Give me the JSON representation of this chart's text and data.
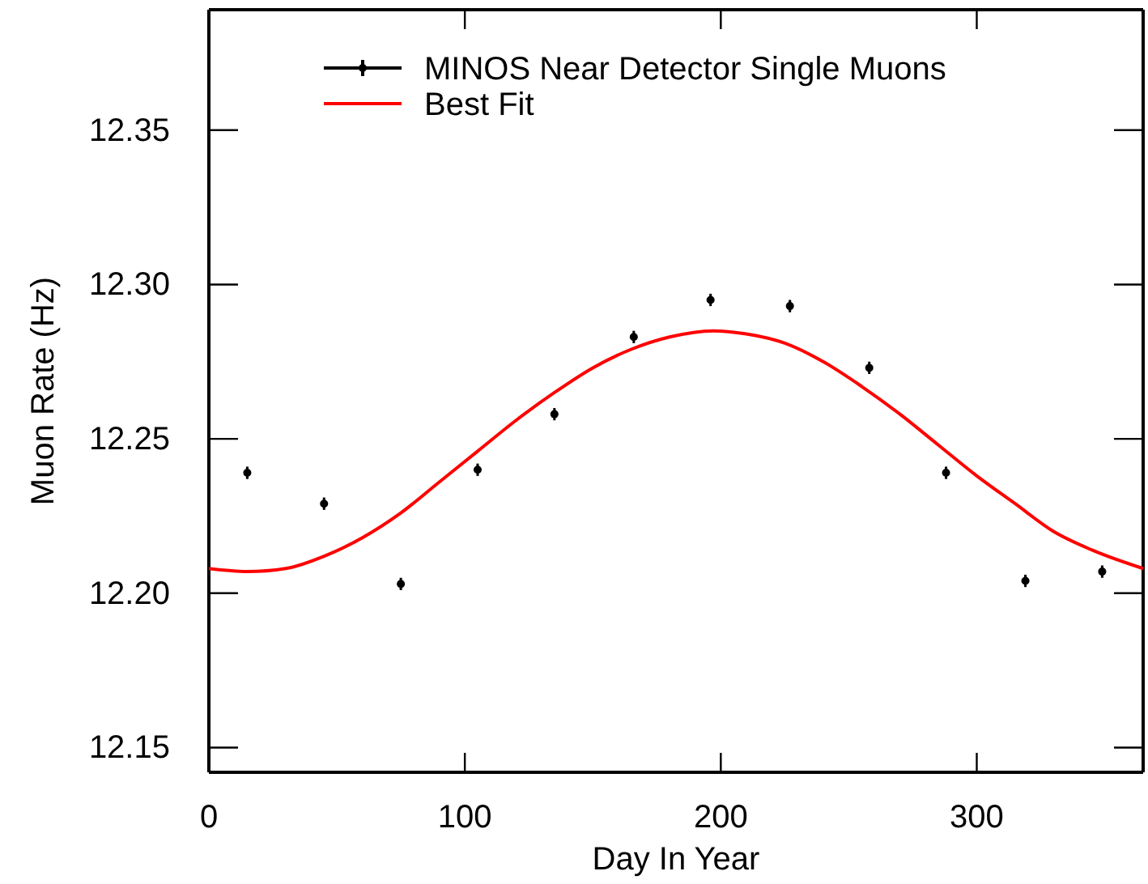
{
  "chart_data": {
    "type": "scatter",
    "xlabel": "Day In Year",
    "ylabel": "Muon Rate (Hz)",
    "xlim": [
      0,
      365
    ],
    "ylim": [
      12.142,
      12.389
    ],
    "xticks": [
      0,
      100,
      200,
      300
    ],
    "yticks": [
      12.15,
      {
        "value": 12.2,
        "label": "12.20"
      },
      12.25,
      {
        "value": 12.3,
        "label": "12.30"
      },
      12.35
    ],
    "grid": false,
    "legend": "top left",
    "series": [
      {
        "name": "MINOS Near Detector Single Muons",
        "color": "#000000",
        "marker": "circle",
        "x": [
          15,
          45,
          75,
          105,
          135,
          166,
          196,
          227,
          258,
          288,
          319,
          349
        ],
        "values": [
          12.239,
          12.229,
          12.203,
          12.24,
          12.258,
          12.283,
          12.295,
          12.293,
          12.273,
          12.239,
          12.204,
          12.207
        ],
        "errors": [
          0.002,
          0.002,
          0.002,
          0.002,
          0.002,
          0.002,
          0.002,
          0.002,
          0.002,
          0.002,
          0.002,
          0.002
        ]
      },
      {
        "name": "Best Fit",
        "type": "line",
        "color": "#ff0000",
        "line_style": "solid",
        "x": [
          0,
          15,
          30,
          45,
          60,
          75,
          90,
          105,
          120,
          135,
          150,
          165,
          180,
          197,
          210,
          225,
          240,
          255,
          270,
          285,
          300,
          315,
          330,
          345,
          365
        ],
        "values": [
          12.208,
          12.207,
          12.208,
          12.212,
          12.218,
          12.226,
          12.236,
          12.246,
          12.256,
          12.265,
          12.273,
          12.279,
          12.283,
          12.285,
          12.284,
          12.281,
          12.275,
          12.267,
          12.258,
          12.248,
          12.238,
          12.229,
          12.22,
          12.214,
          12.208
        ]
      }
    ]
  }
}
